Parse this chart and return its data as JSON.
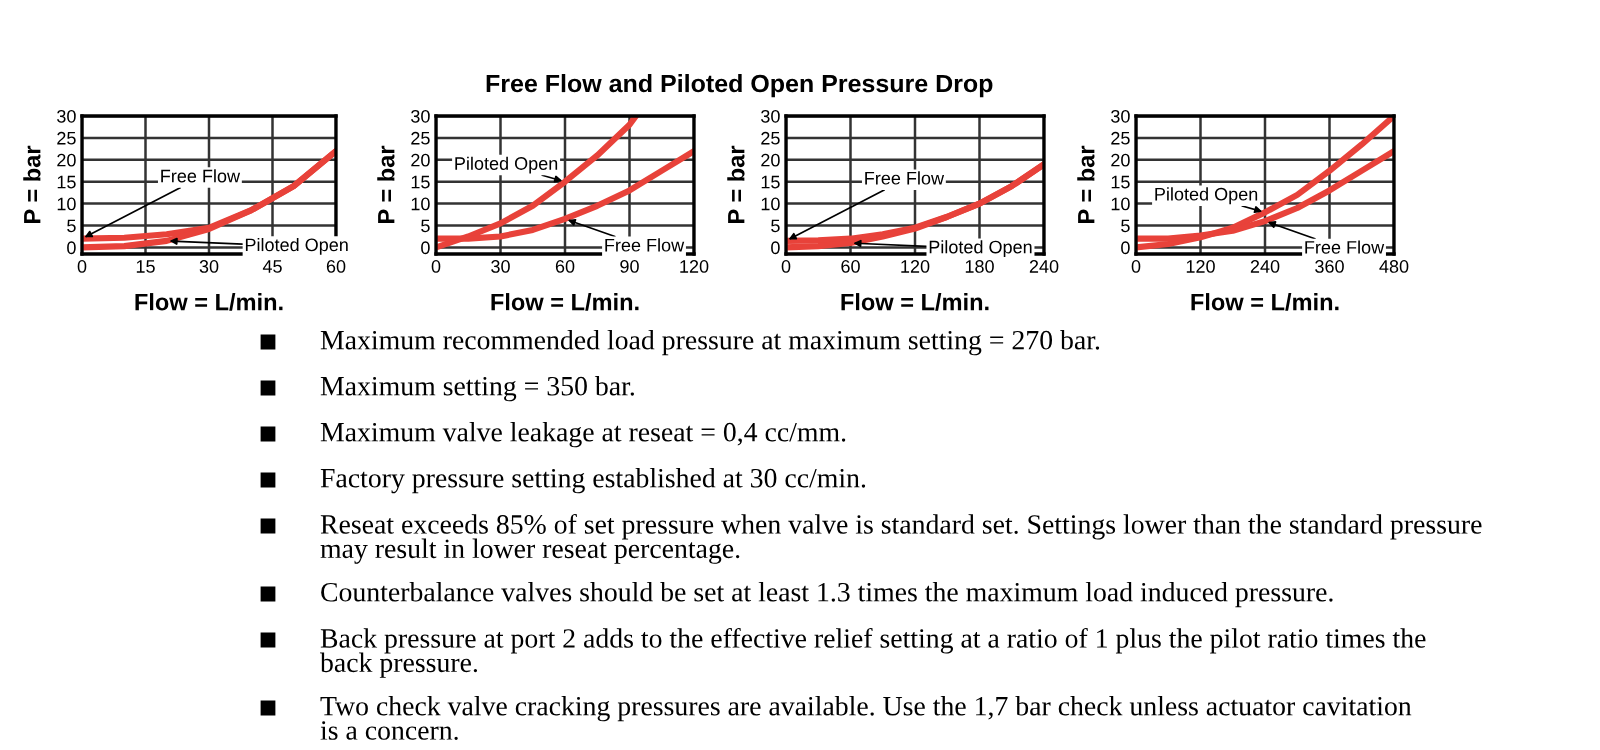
{
  "chart_data": [
    {
      "type": "line",
      "xlabel": "Flow = L/min.",
      "ylabel": "P = bar",
      "grid": true,
      "xlim": [
        0,
        60
      ],
      "xticks": [
        0,
        15,
        30,
        45,
        60
      ],
      "ylim": [
        -1.5,
        30
      ],
      "yticks": [
        0,
        5,
        10,
        15,
        20,
        25,
        30
      ],
      "x": [
        0,
        10,
        20,
        30,
        40,
        50,
        60
      ],
      "series": [
        {
          "name": "Free Flow",
          "color": "#e8423a",
          "values": [
            2,
            2.2,
            3,
            4.5,
            8.5,
            14,
            22
          ]
        },
        {
          "name": "Piloted Open",
          "color": "#e8423a",
          "values": [
            0,
            0.3,
            1.5,
            4.2,
            8.5,
            14,
            22
          ]
        }
      ],
      "annotations": [
        "Maximum recommended load pressure at maximum setting = 270 bar.",
        "Maximum setting = 350 bar.",
        "Maximum valve leakage at reseat = 0,4 cc/mm.",
        "Factory pressure setting established at 30 cc/min.",
        "Reseat exceeds 85% of set pressure when valve is standard set. Settings lower than the standard pressure\nmay result in lower reseat percentage.",
        "Counterbalance valves should be set at least 1.3 times the maximum load induced pressure.",
        "Back pressure at port 2 adds to the effective relief setting at a ratio of 1 plus the pilot ratio times the\nback pressure.",
        "Two check valve cracking pressures are available. Use the 1,7 bar check unless actuator cavitation\nis a concern."
      ]
    },
    {
      "type": "line",
      "title": "Free Flow and Piloted Open Pressure Drop",
      "xlabel": "Flow = L/min.",
      "ylabel": "P = bar",
      "grid": true,
      "xlim": [
        0,
        120
      ],
      "xticks": [
        0,
        30,
        60,
        90,
        120
      ],
      "ylim": [
        -1.5,
        30
      ],
      "yticks": [
        0,
        5,
        10,
        15,
        20,
        25,
        30
      ],
      "series": [
        {
          "name": "Piloted Open",
          "color": "#e8423a",
          "x": [
            0,
            15,
            30,
            45,
            60,
            75,
            90,
            93
          ],
          "values": [
            0,
            2.5,
            5.5,
            9.5,
            15,
            21,
            28,
            30
          ]
        },
        {
          "name": "Free Flow",
          "color": "#e8423a",
          "x": [
            0,
            15,
            30,
            45,
            60,
            75,
            90,
            105,
            120
          ],
          "values": [
            2,
            2,
            2.5,
            4,
            6.5,
            9.5,
            13,
            17.5,
            22
          ]
        }
      ]
    },
    {
      "type": "line",
      "xlabel": "Flow = L/min.",
      "ylabel": "P = bar",
      "grid": true,
      "xlim": [
        0,
        240
      ],
      "xticks": [
        0,
        60,
        120,
        180,
        240
      ],
      "ylim": [
        -1.5,
        30
      ],
      "yticks": [
        0,
        5,
        10,
        15,
        20,
        25,
        30
      ],
      "x": [
        0,
        30,
        60,
        90,
        120,
        150,
        180,
        210,
        240
      ],
      "series": [
        {
          "name": "Free Flow",
          "color": "#e8423a",
          "values": [
            1.5,
            1.6,
            2,
            3,
            4.5,
            7,
            10,
            14,
            19
          ]
        },
        {
          "name": "Piloted Open",
          "color": "#e8423a",
          "values": [
            0,
            0.3,
            1,
            2.5,
            4.3,
            7,
            10,
            14,
            19
          ]
        }
      ]
    },
    {
      "type": "line",
      "xlabel": "Flow = L/min.",
      "ylabel": "P = bar",
      "grid": true,
      "xlim": [
        0,
        480
      ],
      "xticks": [
        0,
        120,
        240,
        360,
        480
      ],
      "ylim": [
        -1.5,
        30
      ],
      "yticks": [
        0,
        5,
        10,
        15,
        20,
        25,
        30
      ],
      "x": [
        0,
        60,
        120,
        180,
        240,
        300,
        360,
        420,
        480
      ],
      "series": [
        {
          "name": "Piloted Open",
          "color": "#e8423a",
          "values": [
            0,
            0.8,
            2.3,
            4.5,
            8,
            12,
            17.5,
            23.5,
            30
          ]
        },
        {
          "name": "Free Flow",
          "color": "#e8423a",
          "values": [
            2,
            2,
            2.7,
            3.8,
            6,
            9,
            13,
            17.5,
            22
          ]
        }
      ]
    }
  ]
}
